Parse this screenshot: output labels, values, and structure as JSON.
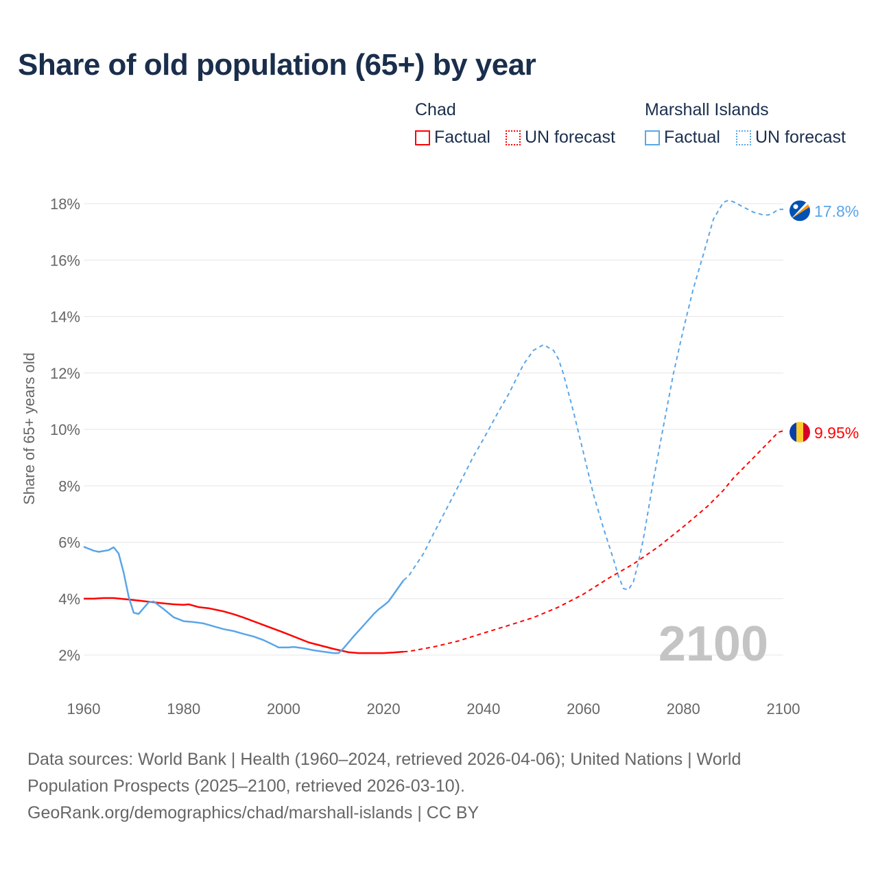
{
  "title": "Share of old population (65+) by year",
  "legend": {
    "groups": [
      {
        "country": "Chad",
        "color": "#ff0000",
        "factual": "Factual",
        "forecast": "UN forecast"
      },
      {
        "country": "Marshall Islands",
        "color": "#5aa5e8",
        "factual": "Factual",
        "forecast": "UN forecast"
      }
    ]
  },
  "watermark_year": "2100",
  "footer": {
    "line1": "Data sources: World Bank | Health (1960–2024, retrieved 2026-04-06); United Nations | World",
    "line2": "Population Prospects (2025–2100, retrieved 2026-03-10).",
    "line3": "GeoRank.org/demographics/chad/marshall-islands | CC BY"
  },
  "chart_data": {
    "type": "line",
    "title": "Share of old population (65+) by year",
    "xlabel": "",
    "ylabel": "Share of 65+ years old",
    "xlim": [
      1960,
      2100
    ],
    "ylim": [
      2,
      18
    ],
    "xticks": [
      "1960",
      "1980",
      "2000",
      "2020",
      "2040",
      "2060",
      "2080",
      "2100"
    ],
    "yticks": [
      "2%",
      "4%",
      "6%",
      "8%",
      "10%",
      "12%",
      "14%",
      "16%",
      "18%"
    ],
    "grid": true,
    "legend_position": "top-right",
    "series": [
      {
        "name": "Chad",
        "color": "#ff0000",
        "end_label": "9.95%",
        "factual": [
          [
            1960,
            4.0
          ],
          [
            1962,
            4.0
          ],
          [
            1964,
            4.02
          ],
          [
            1966,
            4.02
          ],
          [
            1970,
            3.95
          ],
          [
            1975,
            3.85
          ],
          [
            1978,
            3.8
          ],
          [
            1980,
            3.78
          ],
          [
            1981,
            3.8
          ],
          [
            1983,
            3.7
          ],
          [
            1985,
            3.66
          ],
          [
            1988,
            3.55
          ],
          [
            1990,
            3.45
          ],
          [
            1992,
            3.33
          ],
          [
            1995,
            3.13
          ],
          [
            2000,
            2.8
          ],
          [
            2005,
            2.45
          ],
          [
            2010,
            2.22
          ],
          [
            2013,
            2.1
          ],
          [
            2015,
            2.07
          ],
          [
            2020,
            2.07
          ],
          [
            2022,
            2.09
          ],
          [
            2024,
            2.12
          ]
        ],
        "forecast": [
          [
            2024,
            2.12
          ],
          [
            2025,
            2.13
          ],
          [
            2030,
            2.29
          ],
          [
            2035,
            2.5
          ],
          [
            2040,
            2.78
          ],
          [
            2045,
            3.05
          ],
          [
            2050,
            3.33
          ],
          [
            2055,
            3.7
          ],
          [
            2060,
            4.16
          ],
          [
            2065,
            4.72
          ],
          [
            2070,
            5.23
          ],
          [
            2075,
            5.84
          ],
          [
            2080,
            6.55
          ],
          [
            2085,
            7.3
          ],
          [
            2088,
            7.84
          ],
          [
            2090,
            8.27
          ],
          [
            2095,
            9.17
          ],
          [
            2099,
            9.9
          ],
          [
            2100,
            9.95
          ]
        ]
      },
      {
        "name": "Marshall Islands",
        "color": "#5aa5e8",
        "end_label": "17.8%",
        "factual": [
          [
            1960,
            5.84
          ],
          [
            1962,
            5.7
          ],
          [
            1963,
            5.66
          ],
          [
            1965,
            5.72
          ],
          [
            1966,
            5.82
          ],
          [
            1967,
            5.6
          ],
          [
            1968,
            4.92
          ],
          [
            1969,
            4.07
          ],
          [
            1970,
            3.5
          ],
          [
            1971,
            3.46
          ],
          [
            1973,
            3.87
          ],
          [
            1974,
            3.9
          ],
          [
            1976,
            3.63
          ],
          [
            1978,
            3.34
          ],
          [
            1980,
            3.2
          ],
          [
            1982,
            3.17
          ],
          [
            1984,
            3.12
          ],
          [
            1986,
            3.02
          ],
          [
            1988,
            2.92
          ],
          [
            1990,
            2.85
          ],
          [
            1992,
            2.75
          ],
          [
            1994,
            2.66
          ],
          [
            1996,
            2.53
          ],
          [
            1998,
            2.36
          ],
          [
            1999,
            2.27
          ],
          [
            2001,
            2.27
          ],
          [
            2002,
            2.29
          ],
          [
            2004,
            2.24
          ],
          [
            2006,
            2.17
          ],
          [
            2008,
            2.12
          ],
          [
            2010,
            2.07
          ],
          [
            2011,
            2.07
          ],
          [
            2012,
            2.24
          ],
          [
            2014,
            2.66
          ],
          [
            2016,
            3.05
          ],
          [
            2018,
            3.45
          ],
          [
            2019,
            3.62
          ],
          [
            2020,
            3.75
          ],
          [
            2021,
            3.9
          ],
          [
            2022,
            4.15
          ],
          [
            2024,
            4.65
          ]
        ],
        "forecast": [
          [
            2024,
            4.65
          ],
          [
            2025,
            4.8
          ],
          [
            2028,
            5.6
          ],
          [
            2030,
            6.3
          ],
          [
            2035,
            8.0
          ],
          [
            2038,
            9.05
          ],
          [
            2040,
            9.66
          ],
          [
            2043,
            10.63
          ],
          [
            2045,
            11.24
          ],
          [
            2048,
            12.3
          ],
          [
            2050,
            12.8
          ],
          [
            2052,
            13.0
          ],
          [
            2054,
            12.8
          ],
          [
            2055,
            12.5
          ],
          [
            2056,
            11.97
          ],
          [
            2058,
            10.63
          ],
          [
            2060,
            9.17
          ],
          [
            2062,
            7.7
          ],
          [
            2064,
            6.5
          ],
          [
            2066,
            5.4
          ],
          [
            2067,
            4.8
          ],
          [
            2068,
            4.36
          ],
          [
            2069,
            4.31
          ],
          [
            2070,
            4.6
          ],
          [
            2071,
            5.28
          ],
          [
            2072,
            6.13
          ],
          [
            2074,
            8.2
          ],
          [
            2076,
            10.1
          ],
          [
            2078,
            11.97
          ],
          [
            2080,
            13.55
          ],
          [
            2082,
            15.0
          ],
          [
            2084,
            16.2
          ],
          [
            2086,
            17.45
          ],
          [
            2088,
            18.05
          ],
          [
            2089,
            18.12
          ],
          [
            2090,
            18.07
          ],
          [
            2092,
            17.88
          ],
          [
            2094,
            17.7
          ],
          [
            2096,
            17.6
          ],
          [
            2097,
            17.6
          ],
          [
            2098,
            17.68
          ],
          [
            2099,
            17.8
          ],
          [
            2100,
            17.8
          ]
        ]
      }
    ]
  }
}
